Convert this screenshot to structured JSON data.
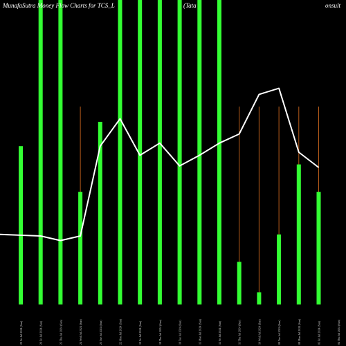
{
  "chart_data": {
    "type": "bar",
    "title_left": "MunafaSutra  Money Flow  Charts for TCS_L",
    "title_mid": "(Tata",
    "title_right": "onsult",
    "categories": [
      "29 Fri Jul 2024 (Sun)",
      "26 Fri Jul 2024 (Sun)",
      "25 Thu Jul 2024 (Sun)",
      "24 Wed Jul 2024 (Sun)",
      "23 Tue Jul 2024 (Sun)",
      "22 Mon Jul 2024 (Sun)",
      "19 Fri Jul 2024 (Sun)",
      "18 Thu Jul 2024 (Sun)",
      "16 Tue Jul 2024 (Sun)",
      "15 Mon Jul 2024 (Sun)",
      "12 Fri Jul 2024 (Sun)",
      "11 Thu Jul 2024 (Sun)",
      "10 Wed Jul 2024 (Sun)",
      "09 Tue Jul 2024 (Sun)",
      "08 Mon Jul 2024 (Sun)",
      "05 Fri Jul 2024 (Sun)",
      "04 Thu Jul 2024 (Sun)"
    ],
    "bar_values": [
      52,
      100,
      100,
      37,
      60,
      100,
      100,
      100,
      100,
      100,
      100,
      14,
      4,
      23,
      46,
      37,
      0
    ],
    "bar_color": "#33ff33",
    "wick_color": "#b85c1a",
    "wick_top": [
      null,
      null,
      null,
      65,
      null,
      null,
      null,
      null,
      null,
      null,
      null,
      65,
      65,
      65,
      65,
      65,
      null
    ],
    "line_values": [
      23,
      22.5,
      21,
      22.5,
      52,
      61,
      49,
      53,
      45.5,
      49,
      53,
      56,
      69,
      71,
      50,
      45,
      null
    ],
    "line_color": "#ffffff",
    "ylim": [
      0,
      100
    ]
  }
}
